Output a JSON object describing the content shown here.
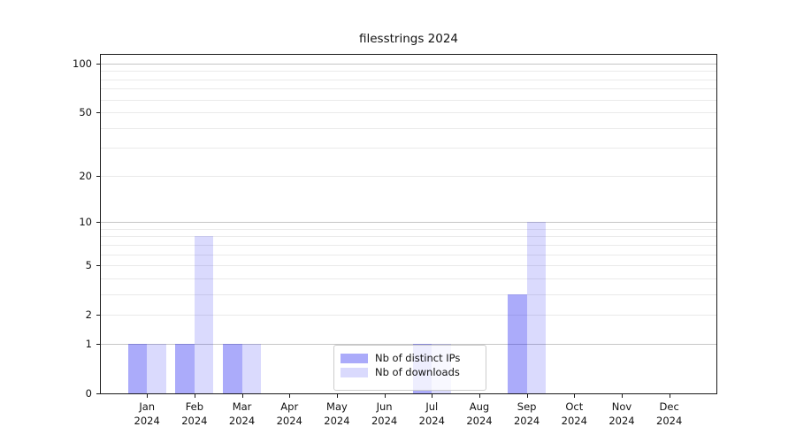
{
  "chart_data": {
    "type": "bar",
    "title": "filesstrings 2024",
    "categories": [
      "Jan",
      "Feb",
      "Mar",
      "Apr",
      "May",
      "Jun",
      "Jul",
      "Aug",
      "Sep",
      "Oct",
      "Nov",
      "Dec"
    ],
    "x_year_label": "2024",
    "series": [
      {
        "name": "Nb of distinct IPs",
        "color": "rgba(10,10,240,0.34)",
        "values": [
          1,
          1,
          1,
          0,
          0,
          0,
          1,
          0,
          3,
          0,
          0,
          0
        ]
      },
      {
        "name": "Nb of downloads",
        "color": "rgba(10,10,240,0.15)",
        "values": [
          1,
          8,
          1,
          0,
          0,
          0,
          1,
          0,
          10,
          0,
          0,
          0
        ]
      }
    ],
    "yscale": "log1p",
    "ylim": [
      0,
      112
    ],
    "y_tick_values": [
      0,
      1,
      2,
      5,
      10,
      20,
      50,
      100
    ],
    "y_minor_gridlines": [
      3,
      4,
      6,
      7,
      8,
      9,
      30,
      40,
      60,
      70,
      80,
      90
    ],
    "grid": "horizontal",
    "legend_position": "lower-center",
    "colors": {
      "major_grid": "#c6c6c6",
      "minor_grid": "#eaeaea",
      "spine": "#1a1a1a",
      "background": "#ffffff"
    }
  }
}
